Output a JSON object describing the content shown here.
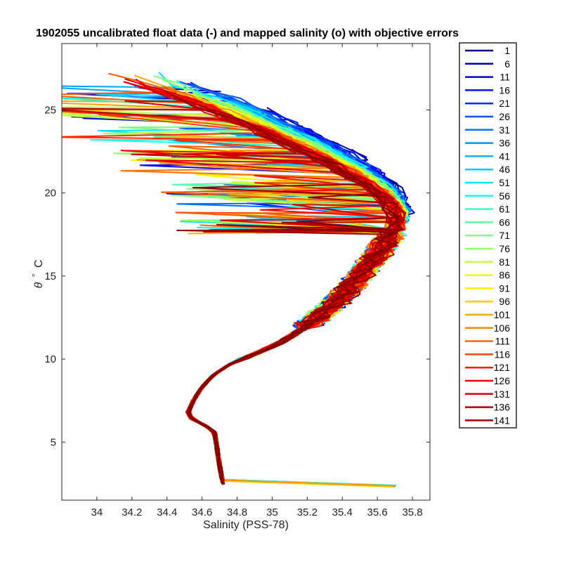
{
  "chart_data": {
    "type": "line",
    "title": "1902055 uncalibrated float data (-) and mapped salinity (o) with objective errors",
    "xlabel": "Salinity (PSS-78)",
    "ylabel_symbol": "θ",
    "ylabel_degree": "°",
    "ylabel_unit": "C",
    "xlim": [
      33.8,
      35.9
    ],
    "ylim": [
      1.5,
      29
    ],
    "xticks": [
      34,
      34.2,
      34.4,
      34.6,
      34.8,
      35,
      35.2,
      35.4,
      35.6,
      35.8
    ],
    "xtick_labels": [
      "34",
      "34.2",
      "34.4",
      "34.6",
      "34.8",
      "35",
      "35.2",
      "35.4",
      "35.6",
      "35.8"
    ],
    "yticks": [
      5,
      10,
      15,
      20,
      25
    ],
    "ytick_labels": [
      "5",
      "10",
      "15",
      "20",
      "25"
    ],
    "grid": false,
    "legend_position": "outside-right",
    "colormap": "jet",
    "profile_count": 145,
    "legend": [
      {
        "label": "1",
        "color": "#00008f"
      },
      {
        "label": "6",
        "color": "#0000b0"
      },
      {
        "label": "11",
        "color": "#0000d6"
      },
      {
        "label": "16",
        "color": "#0011ff"
      },
      {
        "label": "21",
        "color": "#0033ff"
      },
      {
        "label": "26",
        "color": "#0055ff"
      },
      {
        "label": "31",
        "color": "#0077ff"
      },
      {
        "label": "36",
        "color": "#0098ff"
      },
      {
        "label": "41",
        "color": "#00b2ff"
      },
      {
        "label": "46",
        "color": "#00ccff"
      },
      {
        "label": "51",
        "color": "#00e5ff"
      },
      {
        "label": "56",
        "color": "#19f7e6"
      },
      {
        "label": "61",
        "color": "#3dffc2"
      },
      {
        "label": "66",
        "color": "#5cffa3"
      },
      {
        "label": "71",
        "color": "#7bff84"
      },
      {
        "label": "76",
        "color": "#99ff66"
      },
      {
        "label": "81",
        "color": "#c2ff3d"
      },
      {
        "label": "86",
        "color": "#e6ff19"
      },
      {
        "label": "91",
        "color": "#ffee00"
      },
      {
        "label": "96",
        "color": "#ffcc00"
      },
      {
        "label": "101",
        "color": "#ffaa00"
      },
      {
        "label": "106",
        "color": "#ff8800"
      },
      {
        "label": "111",
        "color": "#ff6600"
      },
      {
        "label": "116",
        "color": "#ff4400"
      },
      {
        "label": "121",
        "color": "#ff2200"
      },
      {
        "label": "126",
        "color": "#f00000"
      },
      {
        "label": "131",
        "color": "#d40000"
      },
      {
        "label": "136",
        "color": "#b80000"
      },
      {
        "label": "141",
        "color": "#990000"
      }
    ],
    "envelope": {
      "deep": [
        [
          34.72,
          2.4
        ],
        [
          34.71,
          3.0
        ],
        [
          34.7,
          3.6
        ],
        [
          34.69,
          4.3
        ],
        [
          34.68,
          5.0
        ],
        [
          34.67,
          5.6
        ],
        [
          34.62,
          6.0
        ],
        [
          34.54,
          6.4
        ],
        [
          34.52,
          6.8
        ],
        [
          34.55,
          7.5
        ],
        [
          34.6,
          8.3
        ],
        [
          34.66,
          9.0
        ],
        [
          34.76,
          9.7
        ],
        [
          34.9,
          10.3
        ],
        [
          35.05,
          11.0
        ],
        [
          35.2,
          12.0
        ],
        [
          35.35,
          13.3
        ],
        [
          35.48,
          14.7
        ],
        [
          35.6,
          16.3
        ],
        [
          35.7,
          17.8
        ]
      ],
      "warm": [
        [
          35.7,
          17.8
        ],
        [
          35.72,
          18.8
        ],
        [
          35.62,
          20.2
        ],
        [
          35.42,
          21.6
        ],
        [
          35.2,
          22.8
        ],
        [
          34.95,
          24.0
        ],
        [
          34.7,
          25.2
        ],
        [
          34.45,
          26.2
        ],
        [
          34.25,
          27.0
        ],
        [
          34.1,
          27.6
        ]
      ]
    },
    "series_note": "Each series is one float profile (theta vs salinity); series trace the envelope with profile-dependent scatter."
  }
}
